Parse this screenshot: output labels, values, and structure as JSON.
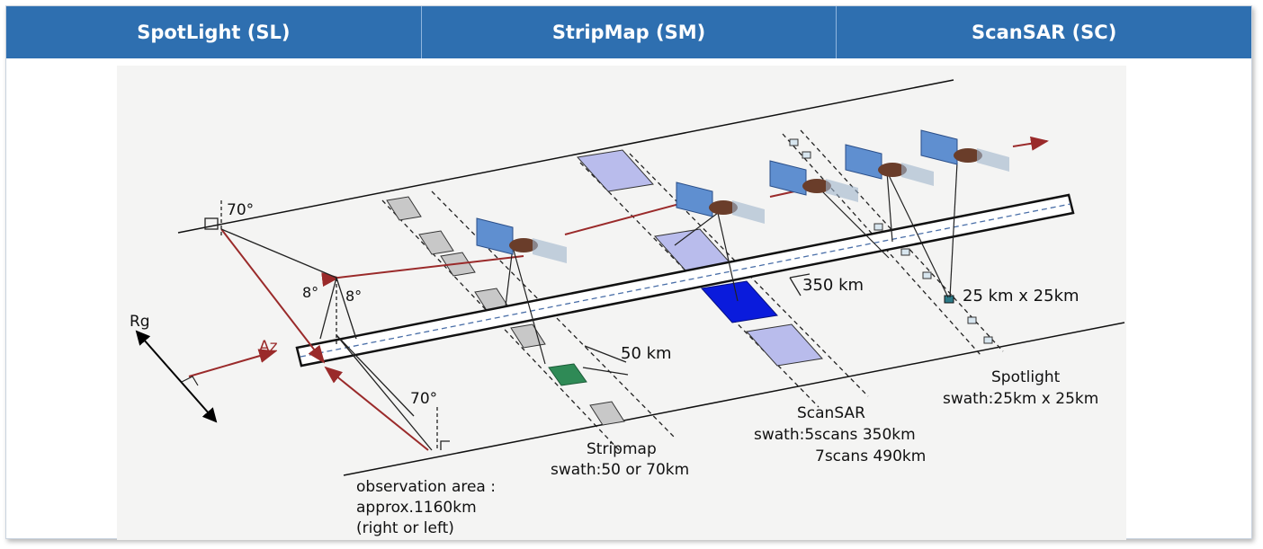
{
  "tabs": [
    {
      "label": "SpotLight (SL)"
    },
    {
      "label": "StripMap (SM)"
    },
    {
      "label": "ScanSAR (SC)"
    }
  ],
  "diagram": {
    "angle_top": "70°",
    "angle_bottom": "70°",
    "angle_left": "8°",
    "angle_right": "8°",
    "rg": "Rg",
    "az": "Az",
    "scansar_width": "350 km",
    "stripmap_width": "50 km",
    "spotlight_size": "25 km x 25km",
    "spotlight": {
      "title": "Spotlight",
      "swath": "swath:25km x 25km"
    },
    "scansar": {
      "title": "ScanSAR",
      "swath_1": "swath:5scans 350km",
      "swath_2": "7scans 490km"
    },
    "stripmap": {
      "title": "Stripmap",
      "swath": "swath:50 or 70km"
    },
    "observation": {
      "line_1": "observation area :",
      "line_2": "approx.1160km",
      "line_3": "(right or left)"
    },
    "colors": {
      "header": "#2e6fb0",
      "scansar_footprint": "#0a1bdc",
      "stripmap_footprint": "#2f8a56",
      "footprint_light": "#b9bcec",
      "footprint_grey": "#c8c8c8",
      "arrow": "#9a2a2a"
    }
  }
}
